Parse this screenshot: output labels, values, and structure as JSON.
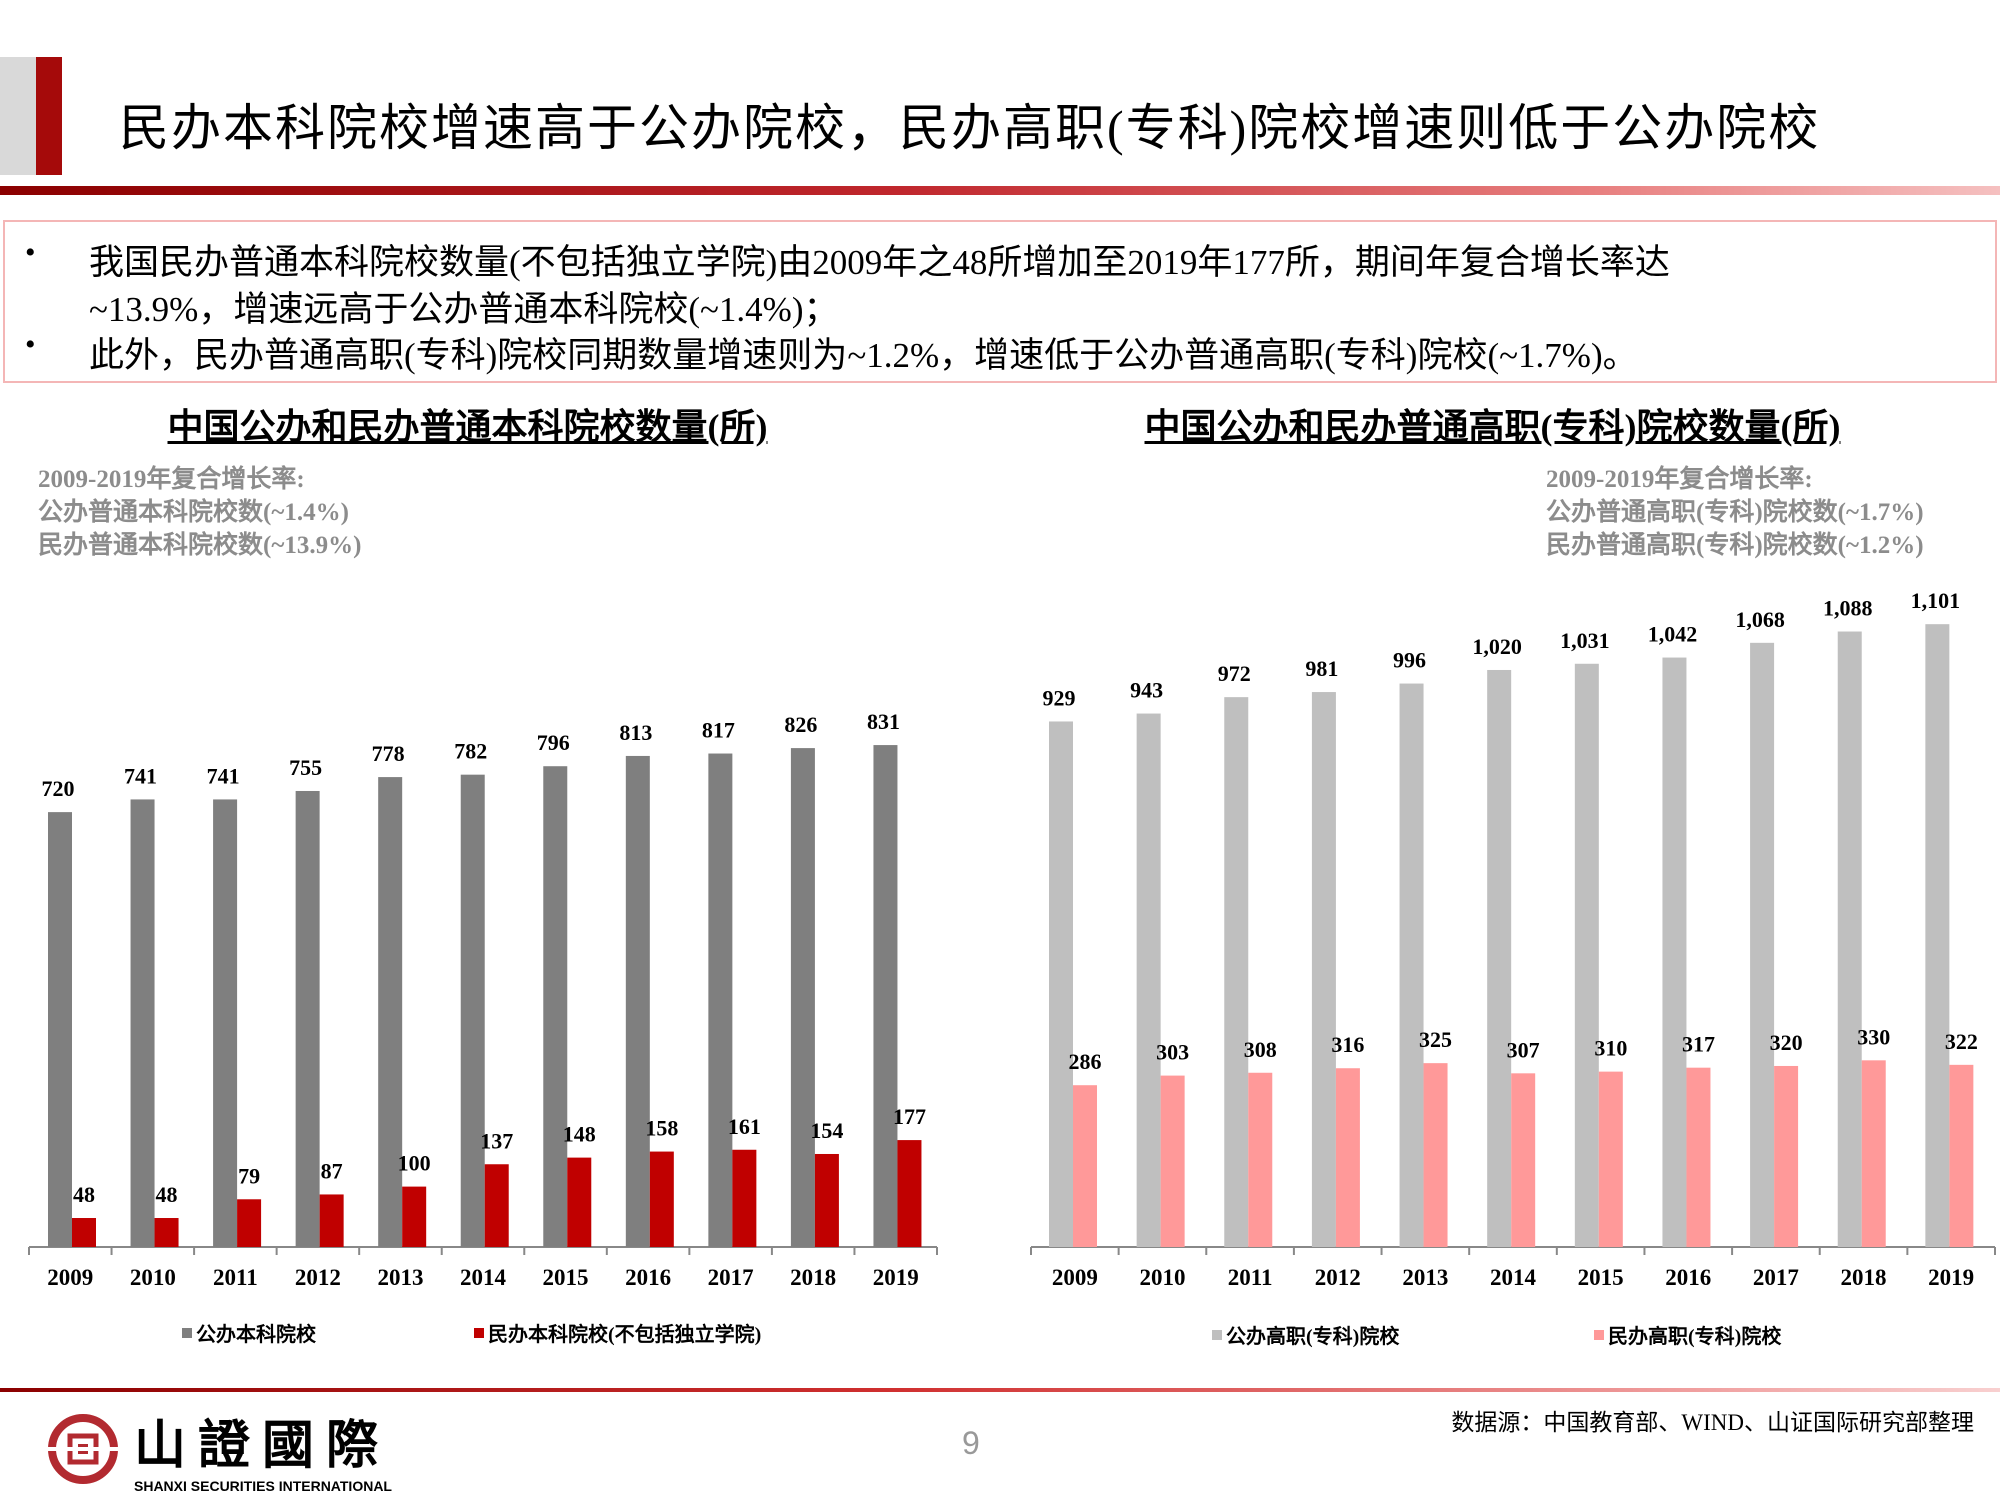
{
  "header": {
    "title": "民办本科院校增速高于公办院校，民办高职(专科)院校增速则低于公办院校"
  },
  "bullets": [
    "我国民办普通本科院校数量(不包括独立学院)由2009年之48所增加至2019年177所，期间年复合增长率达",
    "~13.9%，增速远高于公办普通本科院校(~1.4%)；",
    "此外，民办普通高职(专科)院校同期数量增速则为~1.2%，增速低于公办普通高职(专科)院校(~1.7%)。"
  ],
  "bullet_symbol": "•",
  "chart_data": [
    {
      "type": "bar",
      "title": "中国公办和民办普通本科院校数量(所)",
      "notes": [
        "2009-2019年复合增长率:",
        "公办普通本科院校数(~1.4%)",
        "民办普通本科院校数(~13.9%)"
      ],
      "categories": [
        "2009",
        "2010",
        "2011",
        "2012",
        "2013",
        "2014",
        "2015",
        "2016",
        "2017",
        "2018",
        "2019"
      ],
      "series": [
        {
          "name": "公办本科院校",
          "color": "#7f7f7f",
          "values": [
            720,
            741,
            741,
            755,
            778,
            782,
            796,
            813,
            817,
            826,
            831
          ],
          "labels": [
            "720",
            "741",
            "741",
            "755",
            "778",
            "782",
            "796",
            "813",
            "817",
            "826",
            "831"
          ]
        },
        {
          "name": "民办本科院校(不包括独立学院)",
          "color": "#c00000",
          "values": [
            48,
            48,
            79,
            87,
            100,
            137,
            148,
            158,
            161,
            154,
            177
          ],
          "labels": [
            "48",
            "48",
            "79",
            "87",
            "100",
            "137",
            "148",
            "158",
            "161",
            "154",
            "177"
          ]
        }
      ],
      "ylim": [
        0,
        850
      ],
      "grid": false,
      "legend": "bottom"
    },
    {
      "type": "bar",
      "title": "中国公办和民办普通高职(专科)院校数量(所)",
      "notes": [
        "2009-2019年复合增长率:",
        "公办普通高职(专科)院校数(~1.7%)",
        "民办普通高职(专科)院校数(~1.2%)"
      ],
      "categories": [
        "2009",
        "2010",
        "2011",
        "2012",
        "2013",
        "2014",
        "2015",
        "2016",
        "2017",
        "2018",
        "2019"
      ],
      "series": [
        {
          "name": "公办高职(专科)院校",
          "color": "#bfbfbf",
          "values": [
            929,
            943,
            972,
            981,
            996,
            1020,
            1031,
            1042,
            1068,
            1088,
            1101
          ],
          "labels": [
            "929",
            "943",
            "972",
            "981",
            "996",
            "1,020",
            "1,031",
            "1,042",
            "1,068",
            "1,088",
            "1,101"
          ]
        },
        {
          "name": "民办高职(专科)院校",
          "color": "#ff9999",
          "values": [
            286,
            303,
            308,
            316,
            325,
            307,
            310,
            317,
            320,
            330,
            322
          ],
          "labels": [
            "286",
            "303",
            "308",
            "316",
            "325",
            "307",
            "310",
            "317",
            "320",
            "330",
            "322"
          ]
        }
      ],
      "ylim": [
        0,
        1150
      ],
      "grid": false,
      "legend": "bottom"
    }
  ],
  "footer": {
    "logo_cn": "山證國際",
    "logo_en": "SHANXI SECURITIES INTERNATIONAL",
    "page": "9",
    "source": "数据源：中国教育部、WIND、山证国际研究部整理"
  }
}
